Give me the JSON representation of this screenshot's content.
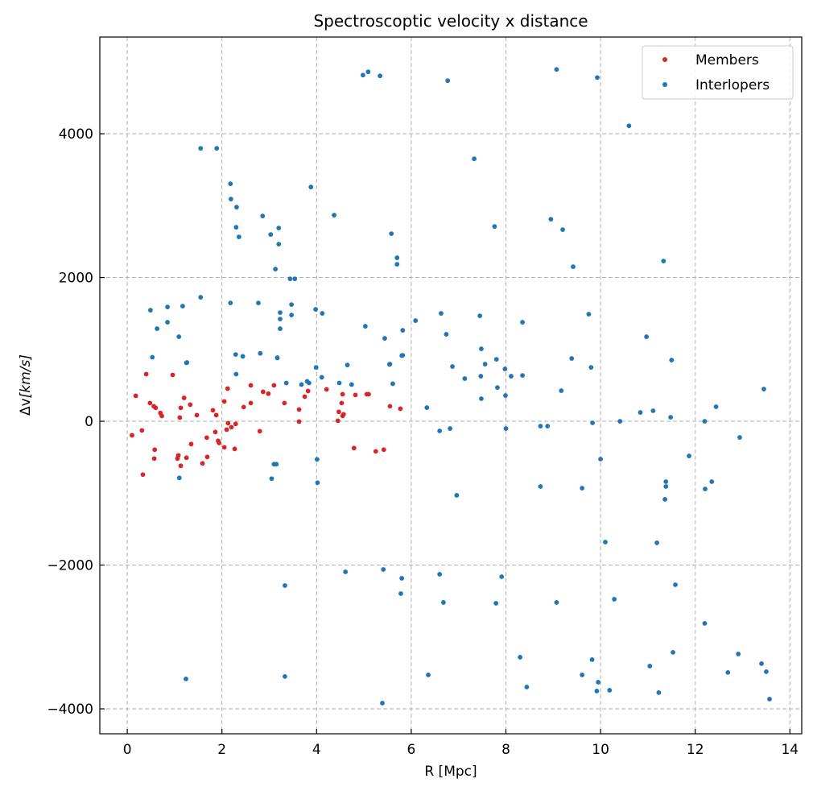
{
  "chart_data": {
    "type": "scatter",
    "title": "Spectroscoptic velocity x distance",
    "xlabel": "R [Mpc]",
    "ylabel_prefix": "Δv",
    "ylabel_unit": "[km/s]",
    "xlim": [
      -0.58,
      14.25
    ],
    "ylim": [
      -4347,
      5345
    ],
    "xticks": [
      0,
      2,
      4,
      6,
      8,
      10,
      12,
      14
    ],
    "yticks": [
      -4000,
      -2000,
      0,
      2000,
      4000
    ],
    "xtick_labels": [
      "0",
      "2",
      "4",
      "6",
      "8",
      "10",
      "12",
      "14"
    ],
    "ytick_labels": [
      "−4000",
      "−2000",
      "0",
      "2000",
      "4000"
    ],
    "grid": true,
    "legend_position": "top-right",
    "series": [
      {
        "name": "Members",
        "color": "#d62728",
        "points": [
          [
            0.4,
            656
          ],
          [
            0.96,
            645
          ],
          [
            0.18,
            354
          ],
          [
            1.2,
            325
          ],
          [
            0.48,
            254
          ],
          [
            0.56,
            209
          ],
          [
            0.6,
            187
          ],
          [
            1.13,
            187
          ],
          [
            1.33,
            231
          ],
          [
            0.7,
            116
          ],
          [
            0.73,
            75
          ],
          [
            1.11,
            52
          ],
          [
            1.47,
            86
          ],
          [
            1.81,
            153
          ],
          [
            1.88,
            86
          ],
          [
            0.1,
            -194
          ],
          [
            0.31,
            -127
          ],
          [
            0.58,
            -395
          ],
          [
            0.57,
            -518
          ],
          [
            1.08,
            -474
          ],
          [
            1.06,
            -518
          ],
          [
            1.25,
            -507
          ],
          [
            1.13,
            -619
          ],
          [
            1.35,
            -317
          ],
          [
            1.68,
            -228
          ],
          [
            1.86,
            -149
          ],
          [
            1.92,
            -272
          ],
          [
            1.94,
            -302
          ],
          [
            2.05,
            -362
          ],
          [
            1.69,
            -496
          ],
          [
            1.59,
            -586
          ],
          [
            0.33,
            -742
          ],
          [
            2.12,
            455
          ],
          [
            2.05,
            276
          ],
          [
            2.13,
            -26
          ],
          [
            2.1,
            -116
          ],
          [
            2.2,
            -82
          ],
          [
            2.29,
            -37
          ],
          [
            2.27,
            -384
          ],
          [
            2.46,
            198
          ],
          [
            2.61,
            254
          ],
          [
            2.61,
            500
          ],
          [
            2.87,
            410
          ],
          [
            2.98,
            384
          ],
          [
            3.1,
            500
          ],
          [
            2.8,
            -138
          ],
          [
            3.32,
            254
          ],
          [
            3.63,
            164
          ],
          [
            3.63,
            -4
          ],
          [
            3.75,
            343
          ],
          [
            3.82,
            421
          ],
          [
            4.21,
            444
          ],
          [
            4.55,
            377
          ],
          [
            4.82,
            366
          ],
          [
            5.06,
            377
          ],
          [
            5.1,
            377
          ],
          [
            4.53,
            254
          ],
          [
            4.47,
            131
          ],
          [
            4.57,
            97
          ],
          [
            4.55,
            75
          ],
          [
            4.45,
            7
          ],
          [
            4.79,
            -373
          ],
          [
            5.25,
            -418
          ],
          [
            5.42,
            -395
          ],
          [
            5.55,
            209
          ],
          [
            5.77,
            175
          ]
        ]
      },
      {
        "name": "Interlopers",
        "color": "#1f77b4",
        "points": [
          [
            0.53,
            891
          ],
          [
            1.25,
            813
          ],
          [
            2.29,
            929
          ],
          [
            2.44,
            903
          ],
          [
            2.81,
            945
          ],
          [
            3.17,
            880
          ],
          [
            2.3,
            656
          ],
          [
            3.99,
            749
          ],
          [
            4.65,
            783
          ],
          [
            4.11,
            612
          ],
          [
            3.36,
            533
          ],
          [
            3.68,
            511
          ],
          [
            3.8,
            556
          ],
          [
            3.84,
            533
          ],
          [
            4.48,
            533
          ],
          [
            4.74,
            511
          ],
          [
            5.54,
            791
          ],
          [
            5.61,
            522
          ],
          [
            5.8,
            914
          ],
          [
            1.1,
            -787
          ],
          [
            3.1,
            -597
          ],
          [
            3.15,
            -597
          ],
          [
            3.05,
            -798
          ],
          [
            4.01,
            -530
          ],
          [
            4.02,
            -854
          ],
          [
            1.55,
            3797
          ],
          [
            1.89,
            3797
          ],
          [
            4.98,
            4816
          ],
          [
            5.09,
            4861
          ],
          [
            5.34,
            4805
          ],
          [
            6.77,
            4738
          ],
          [
            9.07,
            4894
          ],
          [
            9.93,
            4782
          ],
          [
            10.6,
            4110
          ],
          [
            7.33,
            3651
          ],
          [
            3.88,
            3259
          ],
          [
            2.18,
            3304
          ],
          [
            2.19,
            3091
          ],
          [
            2.31,
            2979
          ],
          [
            2.86,
            2856
          ],
          [
            4.37,
            2867
          ],
          [
            2.3,
            2699
          ],
          [
            2.36,
            2565
          ],
          [
            3.2,
            2688
          ],
          [
            3.03,
            2598
          ],
          [
            3.2,
            2464
          ],
          [
            5.58,
            2610
          ],
          [
            7.76,
            2710
          ],
          [
            8.95,
            2811
          ],
          [
            9.2,
            2666
          ],
          [
            5.7,
            2274
          ],
          [
            5.7,
            2184
          ],
          [
            9.42,
            2150
          ],
          [
            11.33,
            2229
          ],
          [
            3.13,
            2117
          ],
          [
            3.44,
            1982
          ],
          [
            3.54,
            1982
          ],
          [
            1.55,
            1725
          ],
          [
            0.49,
            1546
          ],
          [
            0.85,
            1590
          ],
          [
            1.17,
            1602
          ],
          [
            2.18,
            1646
          ],
          [
            2.77,
            1646
          ],
          [
            3.23,
            1512
          ],
          [
            3.47,
            1624
          ],
          [
            3.47,
            1478
          ],
          [
            3.98,
            1557
          ],
          [
            4.12,
            1501
          ],
          [
            3.23,
            1422
          ],
          [
            3.23,
            1288
          ],
          [
            0.63,
            1288
          ],
          [
            0.85,
            1378
          ],
          [
            1.09,
            1176
          ],
          [
            5.03,
            1322
          ],
          [
            6.09,
            1400
          ],
          [
            5.82,
            1266
          ],
          [
            5.44,
            1154
          ],
          [
            6.63,
            1501
          ],
          [
            7.45,
            1467
          ],
          [
            8.35,
            1378
          ],
          [
            6.74,
            1210
          ],
          [
            9.75,
            1490
          ],
          [
            10.97,
            1176
          ],
          [
            1.26,
            818
          ],
          [
            3.17,
            885
          ],
          [
            5.82,
            918
          ],
          [
            5.55,
            795
          ],
          [
            6.87,
            762
          ],
          [
            7.48,
            1008
          ],
          [
            7.8,
            862
          ],
          [
            7.56,
            795
          ],
          [
            7.98,
            728
          ],
          [
            9.8,
            750
          ],
          [
            9.39,
            874
          ],
          [
            11.5,
            851
          ],
          [
            7.13,
            594
          ],
          [
            7.47,
            627
          ],
          [
            8.11,
            627
          ],
          [
            8.35,
            638
          ],
          [
            7.82,
            470
          ],
          [
            7.99,
            358
          ],
          [
            7.48,
            314
          ],
          [
            9.17,
            426
          ],
          [
            13.45,
            448
          ],
          [
            6.33,
            190
          ],
          [
            6.82,
            -101
          ],
          [
            6.6,
            -134
          ],
          [
            8.0,
            -101
          ],
          [
            8.73,
            -67
          ],
          [
            8.88,
            -67
          ],
          [
            9.83,
            -22
          ],
          [
            10.41,
            0
          ],
          [
            10.84,
            123
          ],
          [
            11.11,
            146
          ],
          [
            11.48,
            56
          ],
          [
            12.2,
            0
          ],
          [
            12.44,
            202
          ],
          [
            12.94,
            -224
          ],
          [
            10.0,
            -526
          ],
          [
            6.96,
            -1030
          ],
          [
            8.73,
            -907
          ],
          [
            9.61,
            -930
          ],
          [
            11.38,
            -840
          ],
          [
            11.38,
            -907
          ],
          [
            11.36,
            -1086
          ],
          [
            12.21,
            -941
          ],
          [
            12.35,
            -840
          ],
          [
            11.87,
            -482
          ],
          [
            10.1,
            -1680
          ],
          [
            11.19,
            -1691
          ],
          [
            4.61,
            -2094
          ],
          [
            5.41,
            -2061
          ],
          [
            6.6,
            -2128
          ],
          [
            5.8,
            -2184
          ],
          [
            5.78,
            -2397
          ],
          [
            3.33,
            -2285
          ],
          [
            7.91,
            -2162
          ],
          [
            6.68,
            -2520
          ],
          [
            7.79,
            -2531
          ],
          [
            9.07,
            -2520
          ],
          [
            10.29,
            -2475
          ],
          [
            11.58,
            -2274
          ],
          [
            12.2,
            -2811
          ],
          [
            11.53,
            -3214
          ],
          [
            12.91,
            -3237
          ],
          [
            8.3,
            -3282
          ],
          [
            9.82,
            -3315
          ],
          [
            11.04,
            -3405
          ],
          [
            13.4,
            -3371
          ],
          [
            12.69,
            -3494
          ],
          [
            13.5,
            -3483
          ],
          [
            9.61,
            -3528
          ],
          [
            6.36,
            -3528
          ],
          [
            3.33,
            -3550
          ],
          [
            1.24,
            -3584
          ],
          [
            9.95,
            -3629
          ],
          [
            8.44,
            -3696
          ],
          [
            9.92,
            -3752
          ],
          [
            10.19,
            -3741
          ],
          [
            11.23,
            -3774
          ],
          [
            13.57,
            -3864
          ],
          [
            5.39,
            -3920
          ]
        ]
      }
    ]
  }
}
